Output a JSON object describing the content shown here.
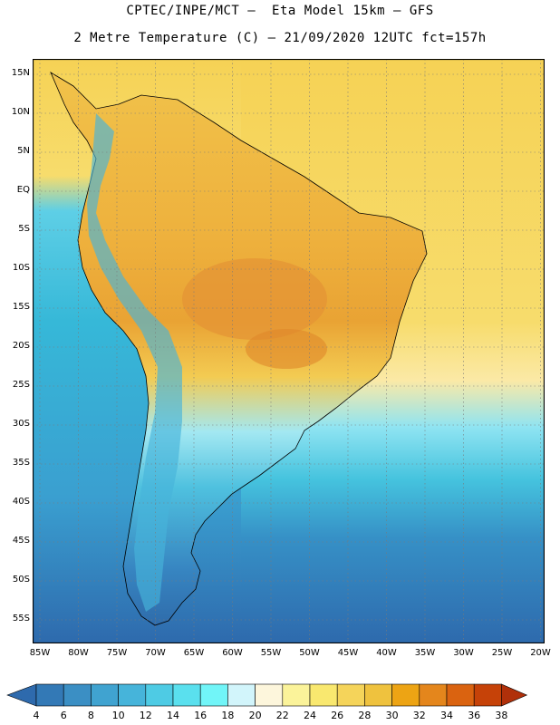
{
  "title": {
    "line1": "CPTEC/INPE/MCT –  Eta Model 15km – GFS",
    "line2": "2 Metre Temperature (C) – 21/09/2020 12UTC fct=157h"
  },
  "map": {
    "lat_labels": [
      "15N",
      "10N",
      "5N",
      "EQ",
      "5S",
      "10S",
      "15S",
      "20S",
      "25S",
      "30S",
      "35S",
      "40S",
      "45S",
      "50S",
      "55S"
    ],
    "lon_labels": [
      "85W",
      "80W",
      "75W",
      "70W",
      "65W",
      "60W",
      "55W",
      "50W",
      "45W",
      "40W",
      "35W",
      "30W",
      "25W",
      "20W"
    ],
    "ocean_pacific_color": "#36b8d8",
    "ocean_atlantic_tropical_color": "#f6d658",
    "land_hot_color": "#e9a334"
  },
  "colorbar": {
    "levels": [
      "4",
      "6",
      "8",
      "10",
      "12",
      "14",
      "16",
      "18",
      "20",
      "22",
      "24",
      "26",
      "28",
      "30",
      "32",
      "34",
      "36",
      "38"
    ],
    "colors": [
      "#2e6aad",
      "#3379b6",
      "#3b8fc4",
      "#40a3d0",
      "#46b4da",
      "#4ecbe4",
      "#5ae0ee",
      "#71f5f8",
      "#d2f5fb",
      "#fdf6dc",
      "#fbf39a",
      "#f9e86f",
      "#f5d45a",
      "#efc23e",
      "#eda414",
      "#e4861c",
      "#da6310",
      "#c64208",
      "#b0300a"
    ]
  }
}
